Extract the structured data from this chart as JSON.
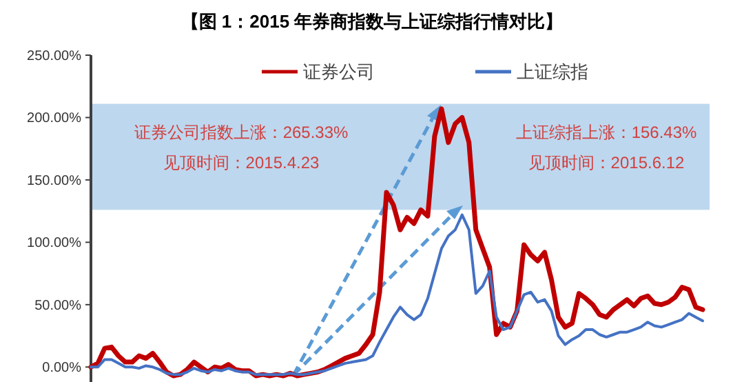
{
  "chart_data": {
    "type": "line",
    "title": "【图 1：2015 年券商指数与上证综指行情对比】",
    "categories": [
      null,
      null,
      null,
      null,
      null,
      null,
      null,
      null,
      null,
      null,
      null,
      null,
      null,
      null,
      null,
      null,
      null,
      null,
      null,
      null,
      null,
      null,
      null,
      null,
      null,
      null,
      null,
      null,
      null,
      null,
      null,
      null,
      null,
      null,
      null,
      null,
      null,
      null,
      null,
      null,
      null,
      null,
      null,
      null,
      null,
      null,
      null,
      null,
      null,
      null,
      null,
      null,
      null,
      null,
      null,
      null,
      null,
      null,
      null,
      null,
      null,
      null,
      null,
      null,
      null,
      null,
      null,
      null,
      null,
      null,
      null,
      null,
      null,
      null,
      null,
      null,
      null,
      null,
      null,
      null,
      null,
      null,
      null,
      null,
      null,
      null,
      null,
      null,
      null,
      null
    ],
    "series": [
      {
        "name": "证券公司",
        "color": "#c00000",
        "values": [
          0,
          3,
          15,
          16,
          9,
          4,
          4,
          9,
          7,
          11,
          4,
          -4,
          -7,
          -6,
          -2,
          4,
          0,
          -4,
          0,
          -1,
          2,
          -2,
          -3,
          -3,
          -7,
          -6,
          -7,
          -6,
          -7,
          -5,
          -7,
          -6,
          -5,
          -4,
          -2,
          1,
          4,
          7,
          9,
          11,
          18,
          26,
          60,
          140,
          130,
          110,
          120,
          115,
          126,
          121,
          185,
          207,
          180,
          195,
          200,
          180,
          110,
          95,
          80,
          26,
          35,
          32,
          45,
          98,
          90,
          85,
          92,
          70,
          40,
          32,
          35,
          59,
          55,
          50,
          42,
          40,
          46,
          50,
          54,
          49,
          55,
          57,
          51,
          50,
          52,
          56,
          64,
          62,
          48,
          46
        ]
      },
      {
        "name": "上证综指",
        "color": "#4472c4",
        "values": [
          0,
          0,
          6,
          6,
          3,
          0,
          0,
          -1,
          1,
          0,
          -2,
          -5,
          -6,
          -6,
          -4,
          -1,
          -3,
          -4,
          -2,
          -3,
          -1,
          -3,
          -4,
          -4,
          -6,
          -6,
          -6,
          -6,
          -6,
          -5,
          -6,
          -6,
          -5,
          -4,
          -3,
          -1,
          1,
          3,
          4,
          5,
          6,
          9,
          20,
          30,
          40,
          48,
          42,
          38,
          42,
          55,
          75,
          95,
          105,
          110,
          122,
          110,
          59,
          65,
          77,
          40,
          30,
          32,
          45,
          58,
          60,
          52,
          54,
          45,
          25,
          18,
          22,
          25,
          30,
          30,
          26,
          24,
          26,
          28,
          28,
          30,
          32,
          36,
          33,
          32,
          34,
          36,
          38,
          43,
          40,
          37
        ]
      }
    ],
    "ylim": [
      -12,
      250
    ],
    "yticks": [
      {
        "value": 0,
        "label": "0.00%"
      },
      {
        "value": 50,
        "label": "50.00%"
      },
      {
        "value": 100,
        "label": "100.00%"
      },
      {
        "value": 150,
        "label": "150.00%"
      },
      {
        "value": 200,
        "label": "200.00%"
      },
      {
        "value": 250,
        "label": "250.00%"
      }
    ],
    "bands": [
      {
        "axis": "y",
        "from": 126,
        "to": 211,
        "color": "#bdd7ee"
      }
    ],
    "annotations": [
      "证券公司指数上涨：265.33%",
      "见顶时间：2015.4.23",
      "上证综指上涨：156.43%",
      "见顶时间：2015.6.12"
    ],
    "legend": "top",
    "grid": false,
    "tick_labels": "y",
    "line_style": "solid",
    "marker": "none"
  }
}
